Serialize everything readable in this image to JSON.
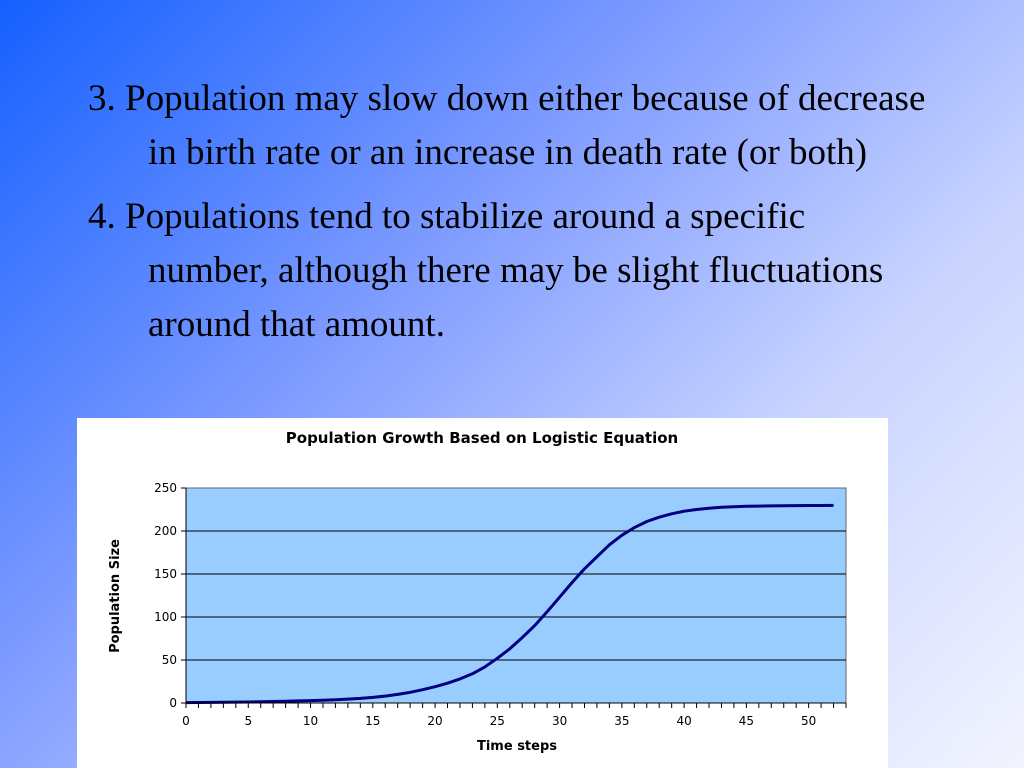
{
  "slide": {
    "points": [
      "3. Population may slow down either because of decrease in birth rate or an increase in death rate (or both)",
      "4. Populations tend to stabilize around a specific number, although there may be slight fluctuations around that amount."
    ]
  },
  "chart_data": {
    "type": "line",
    "title": "Population Growth Based on Logistic Equation",
    "xlabel": "Time steps",
    "ylabel": "Population Size",
    "xlim": [
      0,
      53
    ],
    "ylim": [
      0,
      250
    ],
    "x_ticks": [
      0,
      5,
      10,
      15,
      20,
      25,
      30,
      35,
      40,
      45,
      50
    ],
    "y_ticks": [
      0,
      50,
      100,
      150,
      200,
      250
    ],
    "grid": true,
    "legend": "none",
    "plot_background": "#99ccff",
    "line_color": "#000080",
    "series": [
      {
        "x": [
          0,
          1,
          2,
          3,
          4,
          5,
          6,
          7,
          8,
          9,
          10,
          11,
          12,
          13,
          14,
          15,
          16,
          17,
          18,
          19,
          20,
          21,
          22,
          23,
          24,
          25,
          26,
          27,
          28,
          29,
          30,
          31,
          32,
          33,
          34,
          35,
          36,
          37,
          38,
          39,
          40,
          41,
          42,
          43,
          44,
          45,
          46,
          47,
          48,
          49,
          50,
          51,
          52
        ],
        "values": [
          0.5,
          0.6,
          0.7,
          0.8,
          1,
          1.2,
          1.4,
          1.7,
          2,
          2.4,
          2.8,
          3.2,
          3.8,
          4.5,
          5.3,
          6.5,
          8,
          10,
          12.5,
          15.5,
          19,
          23,
          28,
          34,
          42,
          52,
          63,
          76,
          90,
          106,
          123,
          140,
          156,
          170,
          184,
          195,
          204,
          211,
          216,
          220,
          223,
          225,
          226.5,
          227.5,
          228.2,
          228.7,
          229,
          229.2,
          229.4,
          229.5,
          229.6,
          229.7,
          229.8
        ]
      }
    ]
  }
}
